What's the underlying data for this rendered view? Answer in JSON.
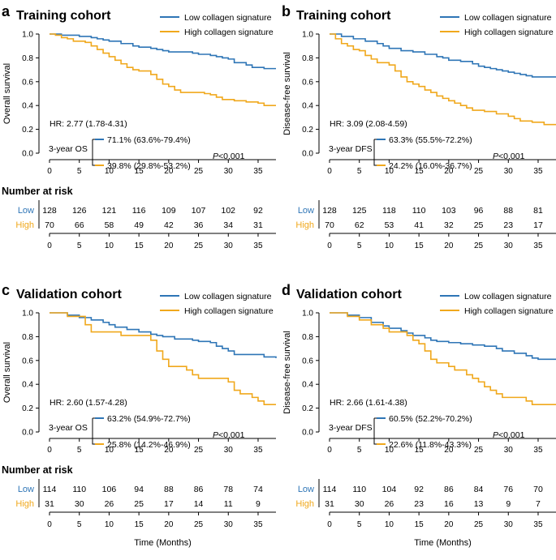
{
  "colors": {
    "low": "#2e75b6",
    "high": "#f0a81c",
    "axis": "#000000"
  },
  "chart_data": [
    {
      "type": "line",
      "panel_letter": "a",
      "title": "Training cohort",
      "xlabel": "",
      "ylabel": "Overall survival",
      "xlim": [
        0,
        38
      ],
      "ylim": [
        0,
        1
      ],
      "xticks": [
        "0",
        "5",
        "10",
        "15",
        "20",
        "25",
        "30",
        "35"
      ],
      "yticks": [
        "0.0",
        "0.2",
        "0.4",
        "0.6",
        "0.8",
        "1.0"
      ],
      "legend": [
        "Low collagen signature",
        "High collagen signature"
      ],
      "hr": "HR: 2.77 (1.78-4.31)",
      "rate_label": "3-year OS",
      "rate_low": "71.1% (63.6%-79.4%)",
      "rate_high": "39.8% (29.8%-53.2%)",
      "p_italic": "P",
      "p_value": "<0.001",
      "series": [
        {
          "name": "Low collagen signature",
          "points": [
            [
              0,
              1
            ],
            [
              2,
              0.99
            ],
            [
              5,
              0.98
            ],
            [
              7,
              0.97
            ],
            [
              8,
              0.96
            ],
            [
              9,
              0.95
            ],
            [
              10,
              0.94
            ],
            [
              12,
              0.92
            ],
            [
              14,
              0.9
            ],
            [
              15,
              0.89
            ],
            [
              17,
              0.88
            ],
            [
              18,
              0.87
            ],
            [
              19,
              0.86
            ],
            [
              20,
              0.85
            ],
            [
              24,
              0.84
            ],
            [
              25,
              0.83
            ],
            [
              27,
              0.82
            ],
            [
              28,
              0.81
            ],
            [
              29,
              0.8
            ],
            [
              30,
              0.79
            ],
            [
              31,
              0.76
            ],
            [
              33,
              0.74
            ],
            [
              34,
              0.72
            ],
            [
              36,
              0.71
            ],
            [
              38,
              0.71
            ]
          ]
        },
        {
          "name": "High collagen signature",
          "points": [
            [
              0,
              1
            ],
            [
              1,
              0.99
            ],
            [
              2,
              0.97
            ],
            [
              3,
              0.96
            ],
            [
              4,
              0.94
            ],
            [
              6,
              0.93
            ],
            [
              7,
              0.9
            ],
            [
              8,
              0.87
            ],
            [
              9,
              0.84
            ],
            [
              10,
              0.81
            ],
            [
              11,
              0.78
            ],
            [
              12,
              0.75
            ],
            [
              13,
              0.72
            ],
            [
              14,
              0.7
            ],
            [
              15,
              0.69
            ],
            [
              17,
              0.66
            ],
            [
              18,
              0.62
            ],
            [
              19,
              0.58
            ],
            [
              20,
              0.56
            ],
            [
              21,
              0.53
            ],
            [
              22,
              0.51
            ],
            [
              26,
              0.5
            ],
            [
              27,
              0.49
            ],
            [
              28,
              0.47
            ],
            [
              29,
              0.45
            ],
            [
              31,
              0.44
            ],
            [
              33,
              0.43
            ],
            [
              35,
              0.42
            ],
            [
              36,
              0.4
            ],
            [
              38,
              0.4
            ]
          ]
        }
      ],
      "risk_title": "Number at risk",
      "risk_low_label": "Low",
      "risk_high_label": "High",
      "risk_low": [
        "128",
        "126",
        "121",
        "116",
        "109",
        "107",
        "102",
        "92"
      ],
      "risk_high": [
        "70",
        "66",
        "58",
        "49",
        "42",
        "36",
        "34",
        "31"
      ],
      "risk_xlabel": ""
    },
    {
      "type": "line",
      "panel_letter": "b",
      "title": "Training cohort",
      "xlabel": "",
      "ylabel": "Disease-free survival",
      "xlim": [
        0,
        38
      ],
      "ylim": [
        0,
        1
      ],
      "xticks": [
        "0",
        "5",
        "10",
        "15",
        "20",
        "25",
        "30",
        "35"
      ],
      "yticks": [
        "0.0",
        "0.2",
        "0.4",
        "0.6",
        "0.8",
        "1.0"
      ],
      "legend": [
        "Low collagen signature",
        "High collagen signature"
      ],
      "hr": "HR: 3.09 (2.08-4.59)",
      "rate_label": "3-year DFS",
      "rate_low": "63.3% (55.5%-72.2%)",
      "rate_high": "24.2% (16.0%-36.7%)",
      "p_italic": "P",
      "p_value": "<0.001",
      "series": [
        {
          "name": "Low collagen signature",
          "points": [
            [
              0,
              1
            ],
            [
              2,
              0.98
            ],
            [
              4,
              0.96
            ],
            [
              6,
              0.94
            ],
            [
              8,
              0.92
            ],
            [
              9,
              0.9
            ],
            [
              10,
              0.88
            ],
            [
              12,
              0.86
            ],
            [
              14,
              0.85
            ],
            [
              16,
              0.83
            ],
            [
              18,
              0.81
            ],
            [
              19,
              0.8
            ],
            [
              20,
              0.78
            ],
            [
              22,
              0.77
            ],
            [
              24,
              0.75
            ],
            [
              25,
              0.73
            ],
            [
              26,
              0.72
            ],
            [
              27,
              0.71
            ],
            [
              28,
              0.7
            ],
            [
              29,
              0.69
            ],
            [
              30,
              0.68
            ],
            [
              31,
              0.67
            ],
            [
              32,
              0.66
            ],
            [
              33,
              0.65
            ],
            [
              34,
              0.64
            ],
            [
              36,
              0.64
            ],
            [
              38,
              0.64
            ]
          ]
        },
        {
          "name": "High collagen signature",
          "points": [
            [
              0,
              1
            ],
            [
              1,
              0.96
            ],
            [
              2,
              0.92
            ],
            [
              3,
              0.9
            ],
            [
              4,
              0.87
            ],
            [
              5,
              0.86
            ],
            [
              6,
              0.82
            ],
            [
              7,
              0.79
            ],
            [
              8,
              0.76
            ],
            [
              10,
              0.74
            ],
            [
              11,
              0.69
            ],
            [
              12,
              0.64
            ],
            [
              13,
              0.6
            ],
            [
              14,
              0.58
            ],
            [
              15,
              0.56
            ],
            [
              16,
              0.53
            ],
            [
              17,
              0.51
            ],
            [
              18,
              0.48
            ],
            [
              19,
              0.46
            ],
            [
              20,
              0.44
            ],
            [
              21,
              0.42
            ],
            [
              22,
              0.4
            ],
            [
              23,
              0.38
            ],
            [
              24,
              0.36
            ],
            [
              26,
              0.35
            ],
            [
              28,
              0.33
            ],
            [
              30,
              0.31
            ],
            [
              31,
              0.29
            ],
            [
              32,
              0.27
            ],
            [
              34,
              0.26
            ],
            [
              36,
              0.24
            ],
            [
              38,
              0.24
            ]
          ]
        }
      ],
      "risk_title": "",
      "risk_low_label": "Low",
      "risk_high_label": "High",
      "risk_low": [
        "128",
        "125",
        "118",
        "110",
        "103",
        "96",
        "88",
        "81"
      ],
      "risk_high": [
        "70",
        "62",
        "53",
        "41",
        "32",
        "25",
        "23",
        "17"
      ],
      "risk_xlabel": ""
    },
    {
      "type": "line",
      "panel_letter": "c",
      "title": "Validation cohort",
      "xlabel": "",
      "ylabel": "Overall survival",
      "xlim": [
        0,
        38
      ],
      "ylim": [
        0,
        1
      ],
      "xticks": [
        "0",
        "5",
        "10",
        "15",
        "20",
        "25",
        "30",
        "35"
      ],
      "yticks": [
        "0.0",
        "0.2",
        "0.4",
        "0.6",
        "0.8",
        "1.0"
      ],
      "legend": [
        "Low collagen signature",
        "High collagen signature"
      ],
      "hr": "HR: 2.60 (1.57-4.28)",
      "rate_label": "3-year OS",
      "rate_low": "63.2% (54.9%-72.7%)",
      "rate_high": "25.8% (14.2%-46.9%)",
      "p_italic": "P",
      "p_value": "<0.001",
      "series": [
        {
          "name": "Low collagen signature",
          "points": [
            [
              0,
              1
            ],
            [
              3,
              0.98
            ],
            [
              5,
              0.96
            ],
            [
              7,
              0.94
            ],
            [
              9,
              0.92
            ],
            [
              10,
              0.9
            ],
            [
              11,
              0.88
            ],
            [
              13,
              0.86
            ],
            [
              15,
              0.84
            ],
            [
              17,
              0.82
            ],
            [
              18,
              0.81
            ],
            [
              19,
              0.8
            ],
            [
              21,
              0.78
            ],
            [
              24,
              0.77
            ],
            [
              25,
              0.76
            ],
            [
              27,
              0.75
            ],
            [
              28,
              0.72
            ],
            [
              29,
              0.7
            ],
            [
              30,
              0.68
            ],
            [
              31,
              0.65
            ],
            [
              35,
              0.65
            ],
            [
              36,
              0.63
            ],
            [
              38,
              0.62
            ]
          ]
        },
        {
          "name": "High collagen signature",
          "points": [
            [
              0,
              1
            ],
            [
              3,
              0.97
            ],
            [
              6,
              0.9
            ],
            [
              7,
              0.84
            ],
            [
              12,
              0.81
            ],
            [
              17,
              0.77
            ],
            [
              18,
              0.68
            ],
            [
              19,
              0.61
            ],
            [
              20,
              0.55
            ],
            [
              23,
              0.52
            ],
            [
              24,
              0.48
            ],
            [
              25,
              0.45
            ],
            [
              30,
              0.42
            ],
            [
              31,
              0.35
            ],
            [
              32,
              0.32
            ],
            [
              34,
              0.29
            ],
            [
              35,
              0.26
            ],
            [
              36,
              0.23
            ],
            [
              38,
              0.23
            ]
          ]
        }
      ],
      "risk_title": "Number at risk",
      "risk_low_label": "Low",
      "risk_high_label": "High",
      "risk_low": [
        "114",
        "110",
        "106",
        "94",
        "88",
        "86",
        "78",
        "74"
      ],
      "risk_high": [
        "31",
        "30",
        "26",
        "25",
        "17",
        "14",
        "11",
        "9"
      ],
      "risk_xlabel": "Time (Months)"
    },
    {
      "type": "line",
      "panel_letter": "d",
      "title": "Validation cohort",
      "xlabel": "",
      "ylabel": "Disease-free survival",
      "xlim": [
        0,
        38
      ],
      "ylim": [
        0,
        1
      ],
      "xticks": [
        "0",
        "5",
        "10",
        "15",
        "20",
        "25",
        "30",
        "35"
      ],
      "yticks": [
        "0.0",
        "0.2",
        "0.4",
        "0.6",
        "0.8",
        "1.0"
      ],
      "legend": [
        "Low collagen signature",
        "High collagen signature"
      ],
      "hr": "HR: 2.66 (1.61-4.38)",
      "rate_label": "3-year DFS",
      "rate_low": "60.5% (52.2%-70.2%)",
      "rate_high": "22.6% (11.8%-43.3%)",
      "p_italic": "P",
      "p_value": "<0.001",
      "series": [
        {
          "name": "Low collagen signature",
          "points": [
            [
              0,
              1
            ],
            [
              3,
              0.98
            ],
            [
              5,
              0.96
            ],
            [
              7,
              0.92
            ],
            [
              9,
              0.89
            ],
            [
              10,
              0.87
            ],
            [
              12,
              0.85
            ],
            [
              13,
              0.83
            ],
            [
              14,
              0.81
            ],
            [
              16,
              0.79
            ],
            [
              17,
              0.77
            ],
            [
              18,
              0.76
            ],
            [
              20,
              0.75
            ],
            [
              22,
              0.74
            ],
            [
              24,
              0.73
            ],
            [
              26,
              0.72
            ],
            [
              28,
              0.7
            ],
            [
              29,
              0.68
            ],
            [
              31,
              0.66
            ],
            [
              33,
              0.64
            ],
            [
              34,
              0.62
            ],
            [
              35,
              0.61
            ],
            [
              38,
              0.61
            ]
          ]
        },
        {
          "name": "High collagen signature",
          "points": [
            [
              0,
              1
            ],
            [
              3,
              0.97
            ],
            [
              5,
              0.94
            ],
            [
              7,
              0.9
            ],
            [
              9,
              0.87
            ],
            [
              10,
              0.84
            ],
            [
              13,
              0.81
            ],
            [
              14,
              0.77
            ],
            [
              15,
              0.74
            ],
            [
              16,
              0.68
            ],
            [
              17,
              0.61
            ],
            [
              18,
              0.58
            ],
            [
              20,
              0.55
            ],
            [
              21,
              0.52
            ],
            [
              23,
              0.48
            ],
            [
              24,
              0.45
            ],
            [
              25,
              0.42
            ],
            [
              26,
              0.38
            ],
            [
              27,
              0.35
            ],
            [
              28,
              0.32
            ],
            [
              29,
              0.29
            ],
            [
              33,
              0.26
            ],
            [
              34,
              0.23
            ],
            [
              38,
              0.23
            ]
          ]
        }
      ],
      "risk_title": "",
      "risk_low_label": "Low",
      "risk_high_label": "High",
      "risk_low": [
        "114",
        "110",
        "104",
        "92",
        "86",
        "84",
        "76",
        "70"
      ],
      "risk_high": [
        "31",
        "30",
        "26",
        "23",
        "16",
        "13",
        "9",
        "7"
      ],
      "risk_xlabel": "Time (Months)"
    }
  ]
}
